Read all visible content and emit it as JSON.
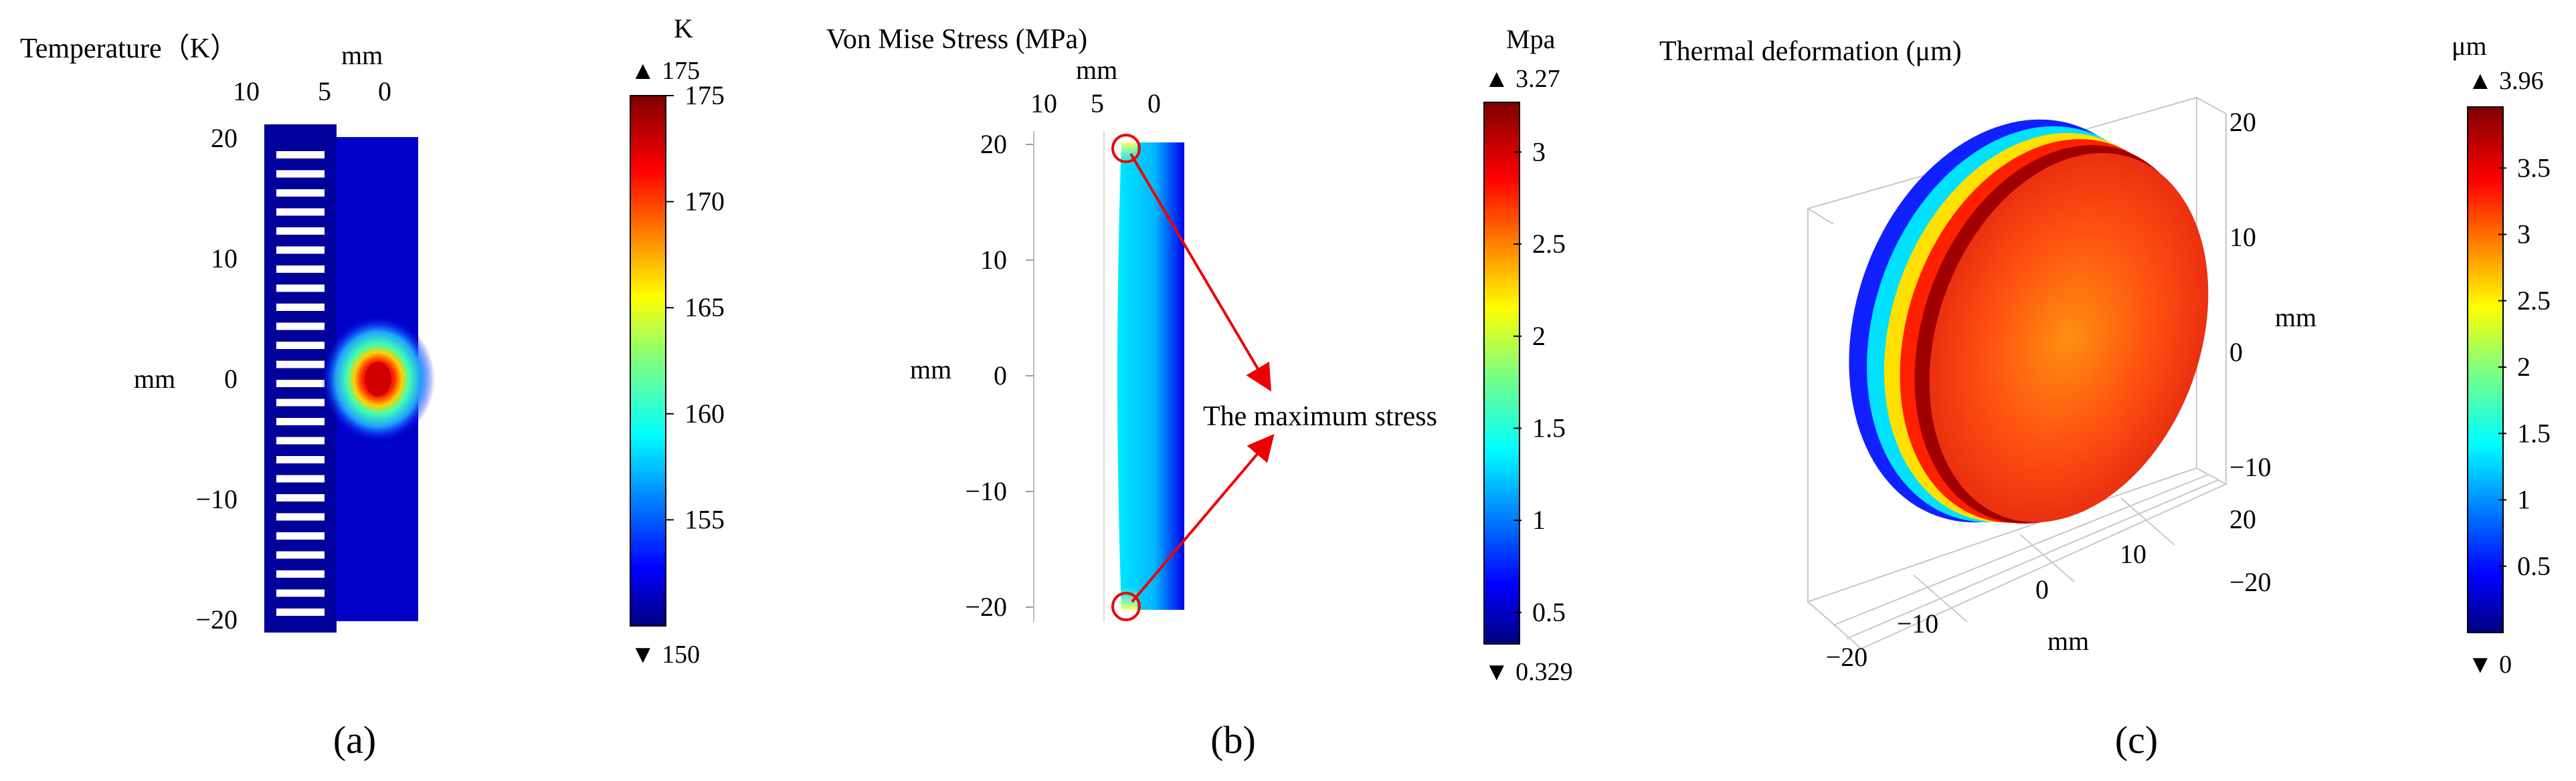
{
  "chart_data": [
    {
      "type": "heatmap",
      "panel": "(a)",
      "title": "Temperature（K）",
      "top_axis_label": "mm",
      "top_ticks": [
        "10",
        "5",
        "0"
      ],
      "ylabel": "mm",
      "y_ticks": [
        "20",
        "10",
        "0",
        "−10",
        "−20"
      ],
      "ylim": [
        -20,
        20
      ],
      "colorbar": {
        "unit": "K",
        "max_label": "▲ 175",
        "min_label": "▼ 150",
        "range": [
          150,
          175
        ],
        "ticks": [
          "175",
          "170",
          "165",
          "160",
          "155"
        ],
        "tick_values": [
          175,
          170,
          165,
          160,
          155
        ]
      },
      "hotspot": {
        "y_mm": 0,
        "max_value": 175
      },
      "background_value": 150
    },
    {
      "type": "heatmap",
      "panel": "(b)",
      "title": "Von Mise Stress (MPa)",
      "top_axis_label": "mm",
      "top_ticks": [
        "10",
        "5",
        "0"
      ],
      "ylabel": "mm",
      "y_ticks": [
        "20",
        "10",
        "0",
        "−10",
        "−20"
      ],
      "ylim": [
        -20,
        20
      ],
      "annotation": "The maximum stress",
      "max_stress_locations_mm": [
        20,
        -20
      ],
      "colorbar": {
        "unit": "Mpa",
        "max_label": "▲ 3.27",
        "min_label": "▼ 0.329",
        "range": [
          0.329,
          3.27
        ],
        "ticks": [
          "3",
          "2.5",
          "2",
          "1.5",
          "1",
          "0.5"
        ],
        "tick_values": [
          3,
          2.5,
          2,
          1.5,
          1,
          0.5
        ]
      }
    },
    {
      "type": "surface",
      "panel": "(c)",
      "title": "Thermal deformation (μm)",
      "z_axis_label": "mm",
      "z_ticks": [
        "20",
        "10",
        "0",
        "−10",
        "−20"
      ],
      "x_axis_label": "mm",
      "x_ticks": [
        "−20",
        "−10",
        "0",
        "10",
        "20"
      ],
      "range_mm": [
        -20,
        20
      ],
      "colorbar": {
        "unit": "μm",
        "max_label": "▲ 3.96",
        "min_label": "▼ 0",
        "range": [
          0,
          3.96
        ],
        "ticks": [
          "3.5",
          "3",
          "2.5",
          "2",
          "1.5",
          "1",
          "0.5"
        ],
        "tick_values": [
          3.5,
          3,
          2.5,
          2,
          1.5,
          1,
          0.5
        ]
      }
    }
  ],
  "colors": {
    "jet_dark_blue": "#00008b",
    "jet_blue": "#0000ff",
    "jet_cyan": "#00ffff",
    "jet_yellow": "#ffff00",
    "jet_red": "#ff0000",
    "jet_dark_red": "#800000",
    "annotation_red": "#ee0000",
    "axis_gray": "#999999"
  }
}
